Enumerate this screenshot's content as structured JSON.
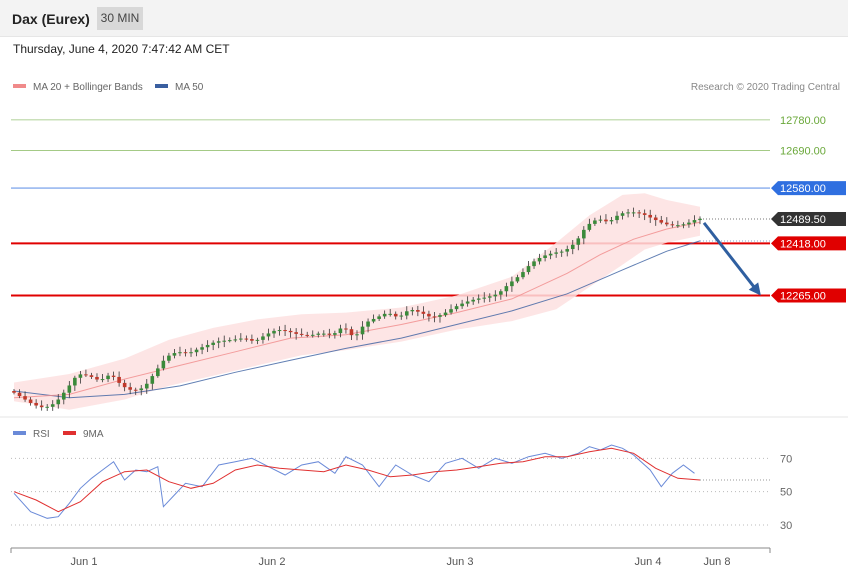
{
  "header": {
    "instrument": "Dax (Eurex)",
    "timeframe": "30 MIN",
    "datetime": "Thursday, June 4, 2020 7:47:42 AM CET"
  },
  "colors": {
    "ma20": "#f08a8a",
    "ma50": "#3a5fa0",
    "bands_fill": "#fde0e0",
    "up_candle": "#3a8a3a",
    "down_candle": "#c0392b",
    "resistance": "#6aa83a",
    "pivot": "#2f6fe0",
    "support": "#e00000",
    "last_price": "#333333",
    "rsi": "#6a8ad8",
    "rsi_ma": "#e03030",
    "arrow": "#2f5fa0"
  },
  "chart_data": [
    {
      "type": "line",
      "title": "",
      "legend": [
        {
          "name": "MA 20 + Bollinger Bands",
          "color": "#f08a8a"
        },
        {
          "name": "MA 50",
          "color": "#3a5fa0"
        }
      ],
      "credit": "Research © 2020 Trading Central",
      "x_ticks": [
        "Jun 1",
        "Jun 2",
        "Jun 3",
        "Jun 4",
        "Jun 8"
      ],
      "ylim": [
        11900,
        12850
      ],
      "levels": [
        {
          "label": "12780.00",
          "value": 12780,
          "kind": "resistance"
        },
        {
          "label": "12690.00",
          "value": 12690,
          "kind": "resistance"
        },
        {
          "label": "12580.00",
          "value": 12580,
          "kind": "pivot"
        },
        {
          "label": "12489.50",
          "value": 12489.5,
          "kind": "last"
        },
        {
          "label": "12418.00",
          "value": 12418,
          "kind": "support"
        },
        {
          "label": "12265.00",
          "value": 12265,
          "kind": "support"
        }
      ],
      "price_path": [
        [
          0,
          11985
        ],
        [
          4,
          11945
        ],
        [
          6,
          11935
        ],
        [
          8,
          11950
        ],
        [
          10,
          11990
        ],
        [
          12,
          12035
        ],
        [
          14,
          12030
        ],
        [
          16,
          12015
        ],
        [
          18,
          12035
        ],
        [
          20,
          12000
        ],
        [
          22,
          11985
        ],
        [
          24,
          11995
        ],
        [
          26,
          12040
        ],
        [
          28,
          12085
        ],
        [
          30,
          12100
        ],
        [
          32,
          12095
        ],
        [
          34,
          12110
        ],
        [
          37,
          12130
        ],
        [
          40,
          12135
        ],
        [
          42,
          12140
        ],
        [
          44,
          12130
        ],
        [
          46,
          12150
        ],
        [
          48,
          12165
        ],
        [
          50,
          12160
        ],
        [
          52,
          12150
        ],
        [
          54,
          12148
        ],
        [
          56,
          12155
        ],
        [
          58,
          12148
        ],
        [
          60,
          12175
        ],
        [
          62,
          12140
        ],
        [
          64,
          12185
        ],
        [
          66,
          12200
        ],
        [
          68,
          12215
        ],
        [
          70,
          12200
        ],
        [
          72,
          12225
        ],
        [
          74,
          12215
        ],
        [
          76,
          12200
        ],
        [
          78,
          12210
        ],
        [
          80,
          12230
        ],
        [
          82,
          12245
        ],
        [
          84,
          12255
        ],
        [
          86,
          12260
        ],
        [
          88,
          12270
        ],
        [
          90,
          12300
        ],
        [
          92,
          12325
        ],
        [
          94,
          12360
        ],
        [
          96,
          12380
        ],
        [
          98,
          12390
        ],
        [
          100,
          12395
        ],
        [
          102,
          12420
        ],
        [
          104,
          12470
        ],
        [
          106,
          12490
        ],
        [
          108,
          12480
        ],
        [
          110,
          12505
        ],
        [
          112,
          12510
        ],
        [
          114,
          12505
        ],
        [
          116,
          12490
        ],
        [
          118,
          12475
        ],
        [
          120,
          12470
        ],
        [
          122,
          12475
        ],
        [
          124,
          12490
        ]
      ],
      "ma20_path": [
        [
          0,
          11965
        ],
        [
          10,
          11975
        ],
        [
          20,
          12020
        ],
        [
          30,
          12060
        ],
        [
          40,
          12100
        ],
        [
          50,
          12140
        ],
        [
          60,
          12150
        ],
        [
          70,
          12180
        ],
        [
          80,
          12215
        ],
        [
          90,
          12255
        ],
        [
          100,
          12330
        ],
        [
          106,
          12385
        ],
        [
          112,
          12430
        ],
        [
          118,
          12460
        ],
        [
          124,
          12480
        ]
      ],
      "ma50_path": [
        [
          0,
          11985
        ],
        [
          10,
          11965
        ],
        [
          20,
          11975
        ],
        [
          30,
          12000
        ],
        [
          40,
          12040
        ],
        [
          50,
          12075
        ],
        [
          60,
          12110
        ],
        [
          70,
          12140
        ],
        [
          80,
          12180
        ],
        [
          90,
          12220
        ],
        [
          100,
          12270
        ],
        [
          110,
          12340
        ],
        [
          118,
          12395
        ],
        [
          124,
          12425
        ]
      ],
      "band_upper_path": [
        [
          0,
          12010
        ],
        [
          10,
          12035
        ],
        [
          20,
          12080
        ],
        [
          28,
          12135
        ],
        [
          36,
          12170
        ],
        [
          44,
          12195
        ],
        [
          52,
          12210
        ],
        [
          60,
          12215
        ],
        [
          70,
          12230
        ],
        [
          80,
          12265
        ],
        [
          90,
          12320
        ],
        [
          98,
          12420
        ],
        [
          104,
          12500
        ],
        [
          110,
          12560
        ],
        [
          114,
          12565
        ],
        [
          118,
          12545
        ],
        [
          124,
          12525
        ]
      ],
      "band_lower_path": [
        [
          0,
          11955
        ],
        [
          10,
          11930
        ],
        [
          20,
          11960
        ],
        [
          28,
          12000
        ],
        [
          36,
          12030
        ],
        [
          44,
          12060
        ],
        [
          52,
          12090
        ],
        [
          60,
          12105
        ],
        [
          70,
          12130
        ],
        [
          80,
          12165
        ],
        [
          90,
          12190
        ],
        [
          98,
          12225
        ],
        [
          104,
          12290
        ],
        [
          110,
          12355
        ],
        [
          114,
          12400
        ],
        [
          118,
          12420
        ],
        [
          124,
          12440
        ]
      ],
      "forecast_arrow": {
        "from": [
          124,
          12478
        ],
        "to": [
          135,
          12265
        ]
      }
    },
    {
      "type": "line",
      "title": "",
      "legend": [
        {
          "name": "RSI",
          "color": "#6a8ad8"
        },
        {
          "name": "9MA",
          "color": "#e03030"
        }
      ],
      "y_ticks": [
        "70",
        "50",
        "30"
      ],
      "ylim": [
        18,
        78
      ],
      "rsi_path": [
        [
          0,
          49
        ],
        [
          3,
          38
        ],
        [
          6,
          34
        ],
        [
          8,
          35
        ],
        [
          10,
          43
        ],
        [
          12,
          52
        ],
        [
          14,
          58
        ],
        [
          16,
          63
        ],
        [
          18,
          68
        ],
        [
          20,
          57
        ],
        [
          22,
          63
        ],
        [
          24,
          62
        ],
        [
          26,
          65
        ],
        [
          27,
          41
        ],
        [
          29,
          48
        ],
        [
          31,
          55
        ],
        [
          34,
          53
        ],
        [
          37,
          66
        ],
        [
          40,
          68
        ],
        [
          43,
          70
        ],
        [
          46,
          65
        ],
        [
          49,
          60
        ],
        [
          52,
          66
        ],
        [
          55,
          68
        ],
        [
          58,
          61
        ],
        [
          60,
          71
        ],
        [
          63,
          66
        ],
        [
          66,
          53
        ],
        [
          69,
          66
        ],
        [
          72,
          60
        ],
        [
          75,
          56
        ],
        [
          78,
          67
        ],
        [
          81,
          70
        ],
        [
          84,
          64
        ],
        [
          87,
          70
        ],
        [
          90,
          67
        ],
        [
          93,
          71
        ],
        [
          96,
          73
        ],
        [
          99,
          70
        ],
        [
          102,
          73
        ],
        [
          104,
          77
        ],
        [
          106,
          75
        ],
        [
          108,
          78
        ],
        [
          110,
          76
        ],
        [
          112,
          72
        ],
        [
          115,
          63
        ],
        [
          117,
          53
        ],
        [
          119,
          61
        ],
        [
          121,
          66
        ],
        [
          123,
          61
        ]
      ],
      "rsi_ma_path": [
        [
          0,
          50
        ],
        [
          4,
          45
        ],
        [
          8,
          38
        ],
        [
          12,
          44
        ],
        [
          16,
          56
        ],
        [
          20,
          62
        ],
        [
          24,
          63
        ],
        [
          28,
          56
        ],
        [
          32,
          52
        ],
        [
          36,
          55
        ],
        [
          40,
          63
        ],
        [
          44,
          66
        ],
        [
          48,
          64
        ],
        [
          52,
          63
        ],
        [
          56,
          62
        ],
        [
          60,
          66
        ],
        [
          64,
          63
        ],
        [
          68,
          59
        ],
        [
          72,
          60
        ],
        [
          76,
          62
        ],
        [
          80,
          63
        ],
        [
          84,
          65
        ],
        [
          88,
          67
        ],
        [
          92,
          68
        ],
        [
          96,
          71
        ],
        [
          100,
          71
        ],
        [
          104,
          74
        ],
        [
          108,
          76
        ],
        [
          112,
          73
        ],
        [
          116,
          64
        ],
        [
          120,
          58
        ],
        [
          124,
          57
        ]
      ]
    }
  ]
}
